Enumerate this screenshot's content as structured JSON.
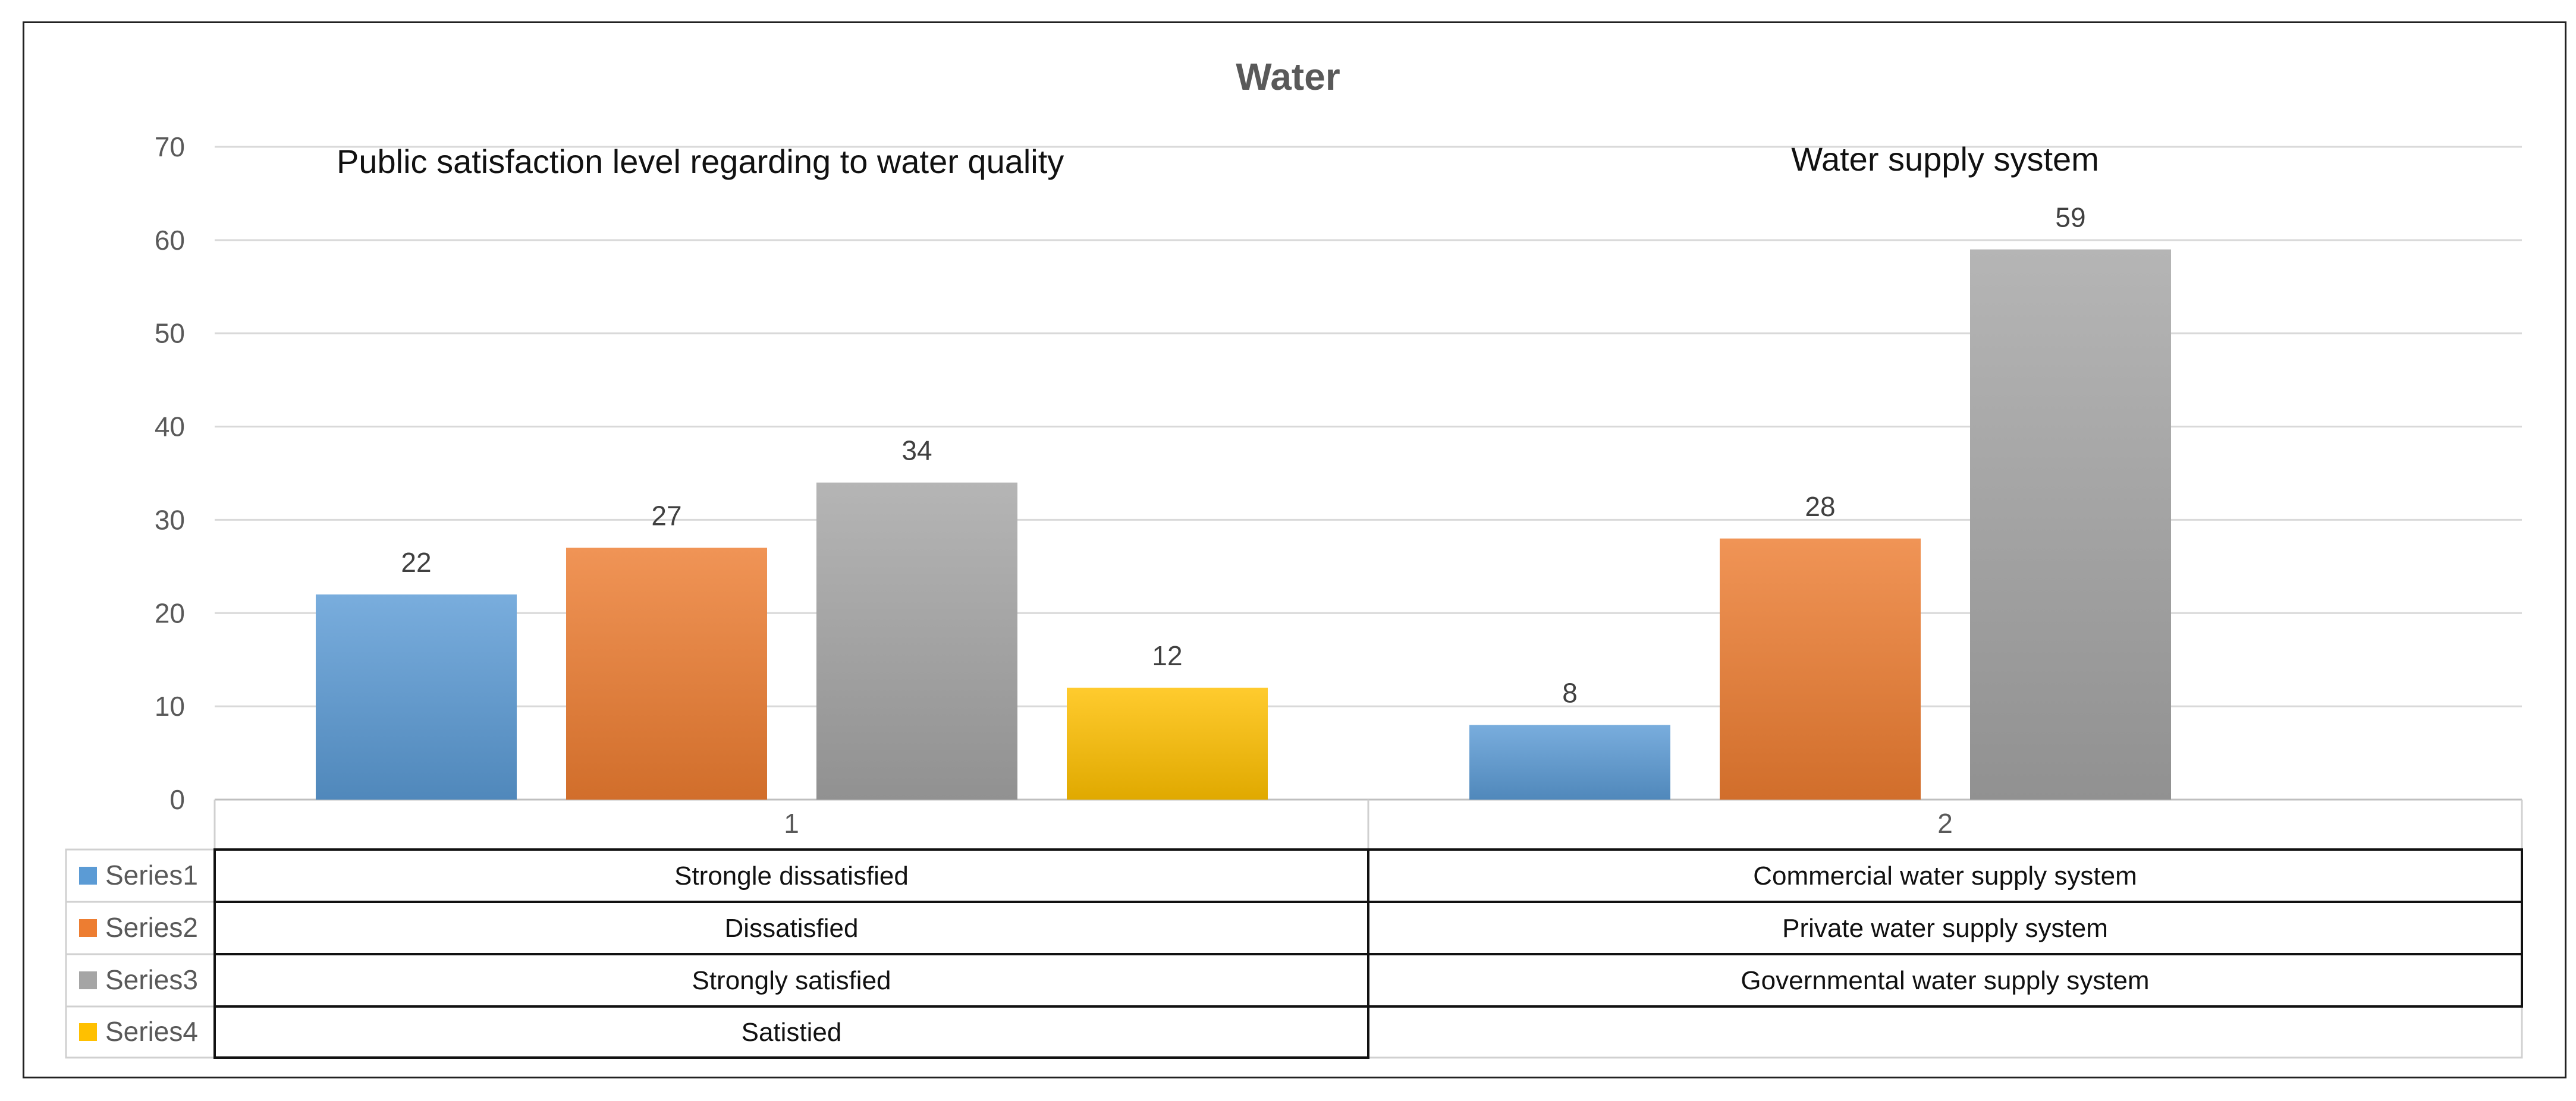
{
  "chart_data": {
    "type": "bar",
    "title": "Water",
    "ylim": [
      0,
      70
    ],
    "yticks": [
      0,
      10,
      20,
      30,
      40,
      50,
      60,
      70
    ],
    "grid": true,
    "categories": [
      "1",
      "2"
    ],
    "series": [
      {
        "name": "Series1",
        "color": "#5B9BD5",
        "values": [
          22,
          8
        ]
      },
      {
        "name": "Series2",
        "color": "#ED7D31",
        "values": [
          27,
          28
        ]
      },
      {
        "name": "Series3",
        "color": "#A5A5A5",
        "values": [
          34,
          59
        ]
      },
      {
        "name": "Series4",
        "color": "#FFC000",
        "values": [
          12,
          null
        ]
      }
    ],
    "annotations": [
      "Public satisfaction level regarding to water quality",
      "Water supply system"
    ],
    "data_table": {
      "rows": [
        [
          "Strongle dissatisfied",
          "Commercial water supply system"
        ],
        [
          "Dissatisfied",
          "Private water supply system"
        ],
        [
          "Strongly satisfied",
          "Governmental water supply system"
        ],
        [
          "Satistied",
          ""
        ]
      ]
    }
  }
}
